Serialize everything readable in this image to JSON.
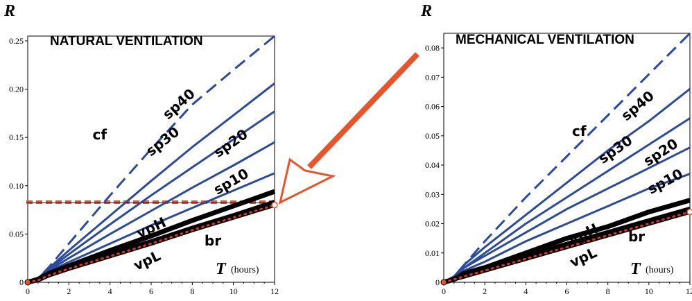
{
  "chart_data": [
    {
      "type": "line",
      "title": "NATURAL VENTILATION",
      "ylabel": "R",
      "xlabel": "T",
      "xunit": "(hours)",
      "xlim": [
        0,
        12
      ],
      "ylim": [
        0,
        0.255
      ],
      "xticks": [
        "0",
        "2",
        "4",
        "6",
        "8",
        "10",
        "12"
      ],
      "yticks": [
        "0",
        "0.05",
        "0.10",
        "0.15",
        "0.20",
        "0.25"
      ],
      "threshold": 0.083,
      "series": [
        {
          "name": "cf",
          "style": "dashed",
          "color": "#2a4a9e",
          "x": [
            0,
            0.5,
            1,
            2,
            4,
            6,
            8,
            10,
            12
          ],
          "y": [
            0,
            0.004,
            0.015,
            0.04,
            0.09,
            0.138,
            0.184,
            0.22,
            0.255
          ]
        },
        {
          "name": "sp40",
          "style": "solid",
          "color": "#2a4a9e",
          "x": [
            0,
            0.5,
            1,
            2,
            4,
            6,
            8,
            10,
            12
          ],
          "y": [
            0,
            0.004,
            0.014,
            0.033,
            0.069,
            0.105,
            0.14,
            0.173,
            0.206
          ]
        },
        {
          "name": "sp30",
          "style": "solid",
          "color": "#2a4a9e",
          "x": [
            0,
            0.5,
            1,
            2,
            4,
            6,
            8,
            10,
            12
          ],
          "y": [
            0,
            0.004,
            0.013,
            0.029,
            0.06,
            0.09,
            0.119,
            0.148,
            0.177
          ]
        },
        {
          "name": "sp20",
          "style": "solid",
          "color": "#2a4a9e",
          "x": [
            0,
            0.5,
            1,
            2,
            4,
            6,
            8,
            10,
            12
          ],
          "y": [
            0,
            0.004,
            0.012,
            0.025,
            0.05,
            0.074,
            0.098,
            0.121,
            0.145
          ]
        },
        {
          "name": "sp10",
          "style": "solid",
          "color": "#2a4a9e",
          "x": [
            0,
            0.5,
            1,
            2,
            4,
            6,
            8,
            10,
            12
          ],
          "y": [
            0,
            0.004,
            0.011,
            0.021,
            0.04,
            0.059,
            0.077,
            0.095,
            0.113
          ]
        },
        {
          "name": "vpH",
          "style": "thick",
          "color": "#000000",
          "x": [
            0,
            0.5,
            1,
            2,
            4,
            6,
            8,
            10,
            12
          ],
          "y": [
            0,
            0.003,
            0.009,
            0.017,
            0.033,
            0.048,
            0.064,
            0.079,
            0.094
          ]
        },
        {
          "name": "vpL",
          "style": "thick",
          "color": "#000000",
          "x": [
            0,
            0.5,
            1,
            2,
            4,
            6,
            8,
            10,
            12
          ],
          "y": [
            0,
            0.003,
            0.008,
            0.015,
            0.029,
            0.042,
            0.056,
            0.069,
            0.083
          ]
        },
        {
          "name": "br",
          "style": "dotted",
          "color": "#d9381e",
          "x": [
            0,
            0.5,
            1,
            2,
            4,
            6,
            8,
            10,
            12
          ],
          "y": [
            0,
            0.002,
            0.007,
            0.014,
            0.027,
            0.04,
            0.054,
            0.067,
            0.08
          ]
        }
      ],
      "labels": [
        {
          "text": "cf",
          "x": 3.5,
          "y": 0.148,
          "rotate": 0
        },
        {
          "text": "sp40",
          "x": 7.5,
          "y": 0.181,
          "rotate": -42
        },
        {
          "text": "sp30",
          "x": 6.7,
          "y": 0.142,
          "rotate": -38
        },
        {
          "text": "sp20",
          "x": 10.0,
          "y": 0.14,
          "rotate": -35
        },
        {
          "text": "sp10",
          "x": 10.0,
          "y": 0.1,
          "rotate": -30
        },
        {
          "text": "vpH",
          "x": 6.1,
          "y": 0.052,
          "rotate": -25
        },
        {
          "text": "vpL",
          "x": 5.9,
          "y": 0.018,
          "rotate": -25
        },
        {
          "text": "br",
          "x": 9.0,
          "y": 0.038,
          "rotate": 0
        }
      ]
    },
    {
      "type": "line",
      "title": "MECHANICAL  VENTILATION",
      "ylabel": "R",
      "xlabel": "T",
      "xunit": "(hours)",
      "xlim": [
        0,
        12
      ],
      "ylim": [
        0,
        0.085
      ],
      "xticks": [
        "0",
        "2",
        "4",
        "6",
        "8",
        "10",
        "12"
      ],
      "yticks": [
        "0",
        "0.01",
        "0.02",
        "0.03",
        "0.04",
        "0.05",
        "0.06",
        "0.07",
        "0.08"
      ],
      "series": [
        {
          "name": "cf",
          "style": "dashed",
          "color": "#2a4a9e",
          "x": [
            0,
            0.5,
            1,
            2,
            4,
            6,
            8,
            10,
            12
          ],
          "y": [
            0,
            0.002,
            0.006,
            0.014,
            0.029,
            0.043,
            0.057,
            0.071,
            0.085
          ]
        },
        {
          "name": "sp40",
          "style": "solid",
          "color": "#2a4a9e",
          "x": [
            0,
            0.5,
            1,
            2,
            4,
            6,
            8,
            10,
            12
          ],
          "y": [
            0,
            0.002,
            0.006,
            0.012,
            0.023,
            0.034,
            0.045,
            0.055,
            0.066
          ]
        },
        {
          "name": "sp30",
          "style": "solid",
          "color": "#2a4a9e",
          "x": [
            0,
            0.5,
            1,
            2,
            4,
            6,
            8,
            10,
            12
          ],
          "y": [
            0,
            0.002,
            0.005,
            0.01,
            0.02,
            0.029,
            0.038,
            0.047,
            0.056
          ]
        },
        {
          "name": "sp20",
          "style": "solid",
          "color": "#2a4a9e",
          "x": [
            0,
            0.5,
            1,
            2,
            4,
            6,
            8,
            10,
            12
          ],
          "y": [
            0,
            0.002,
            0.005,
            0.009,
            0.017,
            0.025,
            0.032,
            0.039,
            0.046
          ]
        },
        {
          "name": "sp10",
          "style": "solid",
          "color": "#2a4a9e",
          "x": [
            0,
            0.5,
            1,
            2,
            4,
            6,
            8,
            10,
            12
          ],
          "y": [
            0,
            0.002,
            0.004,
            0.007,
            0.014,
            0.02,
            0.026,
            0.032,
            0.037
          ]
        },
        {
          "name": "vpH",
          "style": "thick",
          "color": "#000000",
          "x": [
            0,
            0.5,
            1,
            2,
            4,
            6,
            8,
            10,
            12
          ],
          "y": [
            0,
            0.001,
            0.003,
            0.005,
            0.01,
            0.015,
            0.019,
            0.024,
            0.028
          ]
        },
        {
          "name": "vpL",
          "style": "thick",
          "color": "#000000",
          "x": [
            0,
            0.5,
            1,
            2,
            4,
            6,
            8,
            10,
            12
          ],
          "y": [
            0,
            0.001,
            0.003,
            0.005,
            0.009,
            0.013,
            0.017,
            0.021,
            0.025
          ]
        },
        {
          "name": "br",
          "style": "dotted",
          "color": "#d9381e",
          "x": [
            0,
            0.5,
            1,
            2,
            4,
            6,
            8,
            10,
            12
          ],
          "y": [
            0,
            0.001,
            0.002,
            0.004,
            0.008,
            0.012,
            0.016,
            0.02,
            0.024
          ]
        }
      ],
      "labels": [
        {
          "text": "cf",
          "x": 6.6,
          "y": 0.05,
          "rotate": 0
        },
        {
          "text": "sp40",
          "x": 9.6,
          "y": 0.059,
          "rotate": -40
        },
        {
          "text": "sp30",
          "x": 8.5,
          "y": 0.044,
          "rotate": -35
        },
        {
          "text": "sp20",
          "x": 10.7,
          "y": 0.043,
          "rotate": -33
        },
        {
          "text": "sp10",
          "x": 10.9,
          "y": 0.033,
          "rotate": -28
        },
        {
          "text": "vpH",
          "x": 6.9,
          "y": 0.015,
          "rotate": -25
        },
        {
          "text": "vpL",
          "x": 6.9,
          "y": 0.007,
          "rotate": -25
        },
        {
          "text": "br",
          "x": 9.4,
          "y": 0.014,
          "rotate": 0
        }
      ]
    }
  ],
  "colors": {
    "accent": "#e8542a",
    "series_blue": "#2a4a9e"
  }
}
